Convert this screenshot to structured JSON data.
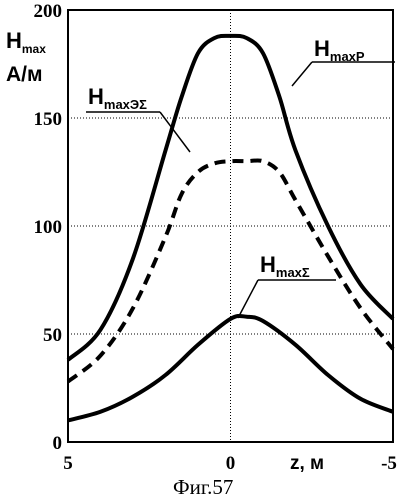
{
  "chart_data": {
    "type": "line",
    "ylabel_main": "H",
    "ylabel_sub": "max",
    "yunit": "А/м",
    "xlabel": "z, м",
    "caption": "Фиг.57",
    "xlim": [
      5,
      -5
    ],
    "ylim": [
      0,
      200
    ],
    "x_ticks": [
      "5",
      "0",
      "-5"
    ],
    "y_ticks": [
      "0",
      "50",
      "100",
      "150",
      "200"
    ],
    "grid": true,
    "series": [
      {
        "main": "H",
        "sub": "maxP",
        "style": "solid",
        "x": [
          5,
          4,
          3,
          2,
          1.5,
          1,
          0.5,
          0,
          -0.5,
          -1,
          -1.5,
          -2,
          -3,
          -4,
          -5
        ],
        "y": [
          38,
          52,
          85,
          135,
          160,
          180,
          187,
          188,
          187,
          180,
          160,
          135,
          100,
          73,
          57
        ]
      },
      {
        "main": "H",
        "sub": "maxЭΣ",
        "style": "dashed",
        "x": [
          5,
          4,
          3,
          2,
          1.5,
          1,
          0.5,
          0,
          -0.5,
          -1,
          -1.5,
          -2,
          -3,
          -4,
          -5
        ],
        "y": [
          28,
          40,
          62,
          95,
          115,
          125,
          129,
          130,
          130,
          130,
          125,
          112,
          86,
          62,
          43
        ]
      },
      {
        "main": "H",
        "sub": "maxΣ",
        "style": "solid",
        "x": [
          5,
          4,
          3,
          2,
          1,
          0,
          -0.5,
          -1,
          -2,
          -3,
          -4,
          -5
        ],
        "y": [
          10,
          14,
          21,
          31,
          45,
          57,
          58,
          56,
          45,
          31,
          20,
          14
        ]
      }
    ]
  }
}
